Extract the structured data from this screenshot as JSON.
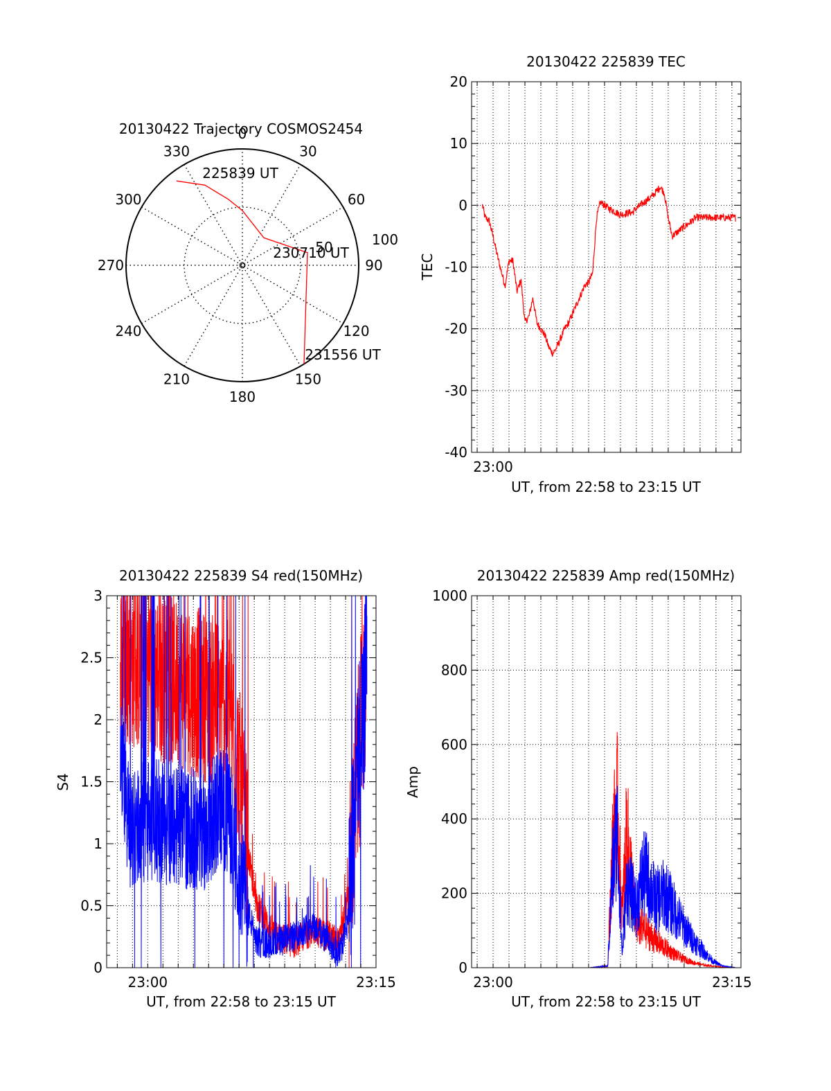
{
  "colors": {
    "red": "#ff0000",
    "blue": "#0000ff",
    "axis": "#000000"
  },
  "chart_data": [
    {
      "type": "polar",
      "title": "20130422 Trajectory COSMOS2454",
      "angle_labels": [
        "0",
        "30",
        "60",
        "90",
        "120",
        "150",
        "180",
        "210",
        "240",
        "270",
        "300",
        "330"
      ],
      "radial_labels": [
        "50",
        "100"
      ],
      "series": [
        {
          "color": "#ff0000",
          "points": [
            [
              -38,
              92
            ],
            [
              -25,
              76
            ],
            [
              -12,
              58
            ],
            [
              0,
              47
            ],
            [
              38,
              30
            ],
            [
              79,
              57
            ],
            [
              148,
              100
            ]
          ]
        }
      ],
      "annotations": [
        {
          "text": "225839 UT"
        },
        {
          "text": "230710 UT"
        },
        {
          "text": "231556 UT"
        }
      ]
    },
    {
      "type": "line",
      "title": "20130422 225839 TEC",
      "xlabel": "UT, from 22:58 to 23:15 UT",
      "ylabel": "TEC",
      "xlim": [
        22.9775,
        23.2595
      ],
      "ylim": [
        -40,
        20
      ],
      "x_ticks": [
        {
          "x": 23.0,
          "label": "23:00"
        }
      ],
      "y_ticks": [
        "20",
        "10",
        "0",
        "-10",
        "-20",
        "-30",
        "-40"
      ],
      "grid": true,
      "series": [
        {
          "color": "#ff0000",
          "x": [
            22.9888,
            22.9917,
            22.9958,
            23.0,
            23.0042,
            23.0083,
            23.0125,
            23.0167,
            23.0208,
            23.025,
            23.0292,
            23.0333,
            23.0375,
            23.0417,
            23.0458,
            23.05,
            23.0542,
            23.0583,
            23.0625,
            23.0667,
            23.0708,
            23.075,
            23.0792,
            23.0833,
            23.0875,
            23.0917,
            23.0958,
            23.1,
            23.1042,
            23.1083,
            23.1125,
            23.1167,
            23.1208,
            23.125,
            23.1292,
            23.1333,
            23.1375,
            23.1417,
            23.1458,
            23.15,
            23.1542,
            23.1583,
            23.1625,
            23.1667,
            23.1708,
            23.175,
            23.1792,
            23.1833,
            23.1875,
            23.1917,
            23.1958,
            23.2,
            23.2042,
            23.2083,
            23.2125,
            23.2167,
            23.2208,
            23.2229,
            23.225,
            23.2292,
            23.2333,
            23.2375,
            23.2417,
            23.2458,
            23.25,
            23.2542
          ],
          "y": [
            0,
            -2,
            -2.5,
            -5,
            -8,
            -10.5,
            -13,
            -9,
            -9,
            -14,
            -12,
            -19,
            -18,
            -15,
            -19,
            -20,
            -21,
            -23,
            -24,
            -23,
            -21.5,
            -20,
            -19,
            -17.5,
            -16,
            -14.5,
            -13,
            -12.5,
            -11,
            -2,
            0.5,
            0,
            -0.5,
            -0.8,
            -1.2,
            -1.5,
            -1.4,
            -1.2,
            -1.2,
            -0.5,
            0,
            0.5,
            1,
            1.5,
            2.2,
            3,
            2,
            -2,
            -5,
            -4.5,
            -4,
            -3.5,
            -3,
            -2.5,
            -2,
            -2,
            -2,
            -2,
            -2,
            -2,
            -2,
            -2,
            -2,
            -2,
            -2,
            -2
          ]
        }
      ]
    },
    {
      "type": "line",
      "title": "20130422 225839 S4 red(150MHz)",
      "xlabel": "UT, from 22:58 to 23:15 UT",
      "ylabel": "S4",
      "xlim": [
        22.955,
        23.25
      ],
      "ylim": [
        0,
        3
      ],
      "x_ticks": [
        {
          "x": 23.0,
          "label": "23:00"
        },
        {
          "x": 23.25,
          "label": "23:15"
        }
      ],
      "y_ticks": [
        "3",
        "2.5",
        "2",
        "1.5",
        "1",
        "0.5",
        "0"
      ],
      "grid": true,
      "series": [
        {
          "color": "#ff0000",
          "x": [
            22.97,
            23.0,
            23.03,
            23.06,
            23.09,
            23.1,
            23.11,
            23.12,
            23.14,
            23.16,
            23.18,
            23.2,
            23.21,
            23.22,
            23.23,
            23.24
          ],
          "y": [
            2.5,
            2.4,
            2.3,
            2.2,
            2.1,
            1.6,
            0.9,
            0.5,
            0.25,
            0.2,
            0.3,
            0.25,
            0.2,
            0.6,
            1.6,
            2.5
          ]
        },
        {
          "color": "#0000ff",
          "x": [
            22.97,
            22.98,
            23.0,
            23.03,
            23.06,
            23.08,
            23.09,
            23.1,
            23.11,
            23.12,
            23.14,
            23.16,
            23.18,
            23.2,
            23.21,
            23.22,
            23.23,
            23.24
          ],
          "y": [
            1.8,
            1.1,
            1.2,
            1.15,
            1.1,
            1.3,
            1.2,
            0.8,
            0.45,
            0.2,
            0.2,
            0.25,
            0.35,
            0.2,
            0.1,
            0.4,
            1.5,
            2.5
          ]
        }
      ]
    },
    {
      "type": "line",
      "title": "20130422 225839 Amp red(150MHz)",
      "xlabel": "UT, from 22:58 to 23:15 UT",
      "ylabel": "Amp",
      "xlim": [
        22.9775,
        23.2595
      ],
      "ylim": [
        0,
        1000
      ],
      "x_ticks": [
        {
          "x": 23.0,
          "label": "23:00"
        },
        {
          "x": 23.25,
          "label": "23:15"
        }
      ],
      "y_ticks": [
        "1000",
        "800",
        "600",
        "400",
        "200",
        "0"
      ],
      "grid": true,
      "series": [
        {
          "color": "#ff0000",
          "x": [
            22.99,
            23.1,
            23.12,
            23.125,
            23.13,
            23.135,
            23.14,
            23.15,
            23.16,
            23.17,
            23.18,
            23.19,
            23.2,
            23.21,
            23.22,
            23.23,
            23.24,
            23.255
          ],
          "y": [
            0,
            0,
            5,
            350,
            480,
            150,
            400,
            130,
            110,
            80,
            60,
            40,
            25,
            15,
            8,
            5,
            2,
            0
          ]
        },
        {
          "color": "#0000ff",
          "x": [
            22.99,
            23.1,
            23.12,
            23.125,
            23.13,
            23.135,
            23.14,
            23.15,
            23.155,
            23.16,
            23.17,
            23.18,
            23.19,
            23.2,
            23.21,
            23.22,
            23.23,
            23.24,
            23.255
          ],
          "y": [
            0,
            0,
            5,
            280,
            420,
            40,
            250,
            180,
            260,
            280,
            200,
            220,
            170,
            120,
            80,
            50,
            20,
            5,
            0
          ]
        }
      ]
    }
  ]
}
